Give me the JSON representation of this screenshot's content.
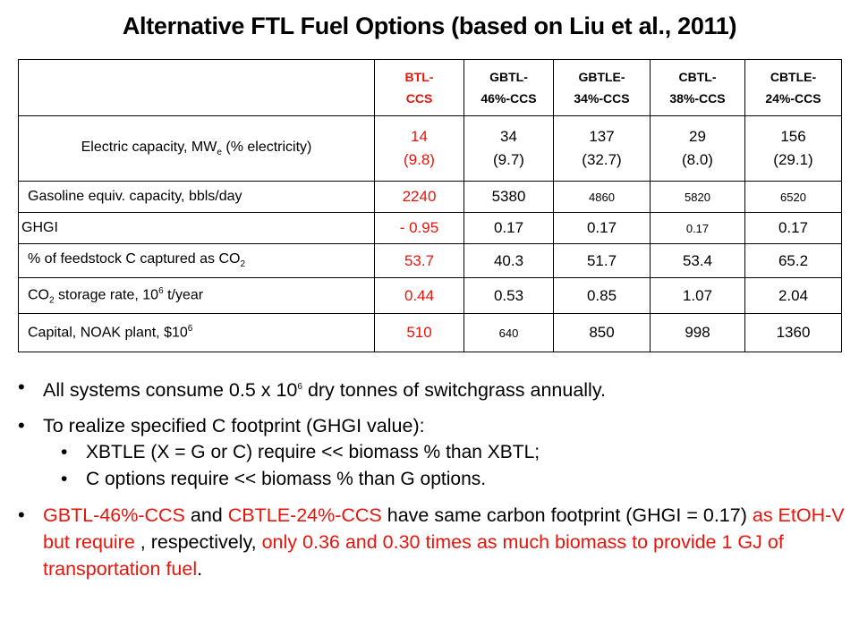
{
  "title": "Alternative FTL Fuel Options (based on Liu et al., 2011)",
  "table": {
    "headers": [
      {
        "l1": "BTL-",
        "l2": "CCS"
      },
      {
        "l1": "GBTL-",
        "l2": "46%-CCS"
      },
      {
        "l1": "GBTLE-",
        "l2": "34%-CCS"
      },
      {
        "l1": "CBTL-",
        "l2": "38%-CCS"
      },
      {
        "l1": "CBTLE-",
        "l2": "24%-CCS"
      }
    ],
    "rows": {
      "electric": {
        "label_pre": "Electric capacity, MW",
        "label_sub": "e",
        "label_post": " (% electricity)",
        "cells": [
          {
            "a": "14",
            "b": "(9.8)"
          },
          {
            "a": "34",
            "b": "(9.7)"
          },
          {
            "a": "137",
            "b": "(32.7)"
          },
          {
            "a": "29",
            "b": "(8.0)"
          },
          {
            "a": "156",
            "b": "(29.1)"
          }
        ]
      },
      "gasoline": {
        "label": "Gasoline equiv. capacity, bbls/day",
        "cells": [
          "2240",
          "5380",
          "4860",
          "5820",
          "6520"
        ]
      },
      "ghgi": {
        "label": "GHGI",
        "cells": [
          "- 0.95",
          "0.17",
          "0.17",
          "0.17",
          "0.17"
        ]
      },
      "captured": {
        "label_pre": "% of feedstock C captured as CO",
        "label_sub": "2",
        "cells": [
          "53.7",
          "40.3",
          "51.7",
          "53.4",
          "65.2"
        ]
      },
      "storage": {
        "label_a": "CO",
        "label_sub": "2",
        "label_b": " storage rate, 10",
        "label_sup": "6",
        "label_c": " t/year",
        "cells": [
          "0.44",
          "0.53",
          "0.85",
          "1.07",
          "2.04"
        ]
      },
      "capital": {
        "label_pre": "Capital, NOAK plant, $10",
        "label_sup": "6",
        "cells": [
          "510",
          "640",
          "850",
          "998",
          "1360"
        ]
      }
    }
  },
  "bullets": {
    "b1_pre": "All systems consume 0.5 x 10",
    "b1_sup": "6",
    "b1_post": " dry tonnes of switchgrass annually.",
    "b2": "To realize specified C footprint (GHGI value):",
    "b2_sub1": "XBTLE (X = G or C) require << biomass % than XBTL;",
    "b2_sub2": "C options require << biomass % than G options.",
    "b3_s1": "GBTL-46%-CCS",
    "b3_s2": " and ",
    "b3_s3": "CBTLE-24%-CCS",
    "b3_s4": " have same carbon footprint (GHGI = 0.17) ",
    "b3_s5": "as EtOH-V but require",
    "b3_s6": " , respectively, ",
    "b3_s7": "only 0.36 and 0.30 times as much biomass to provide 1 GJ of transportation fuel",
    "b3_s8": "."
  },
  "colors": {
    "highlight": "#e8150c",
    "text": "#000000"
  }
}
